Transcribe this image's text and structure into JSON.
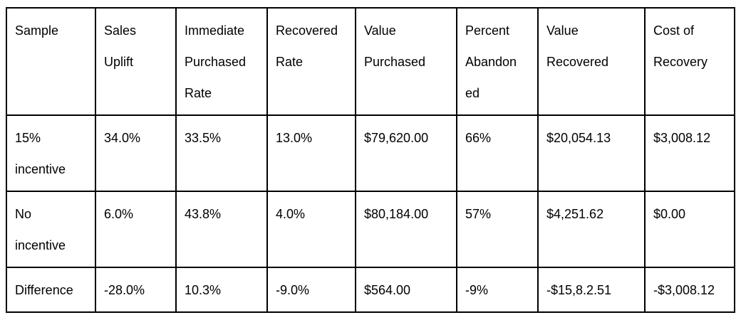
{
  "page": {
    "background_color": "#ffffff",
    "text_color": "#000000",
    "border_color": "#000000"
  },
  "table": {
    "headers": [
      "Sample",
      "Sales\nUplift",
      "Immediate\nPurchased\nRate",
      "Recovered\nRate",
      "Value\nPurchased",
      "Percent\nAbandon\ned",
      "Value\nRecovered",
      "Cost of\nRecovery"
    ],
    "rows": [
      [
        "15%\nincentive",
        "34.0%",
        "33.5%",
        "13.0%",
        "$79,620.00",
        "66%",
        "$20,054.13",
        "$3,008.12"
      ],
      [
        "No\nincentive",
        "6.0%",
        "43.8%",
        "4.0%",
        "$80,184.00",
        "57%",
        "$4,251.62",
        "$0.00"
      ],
      [
        "Difference",
        "-28.0%",
        "10.3%",
        "-9.0%",
        "$564.00",
        "-9%",
        "-$15,8.2.51",
        "-$3,008.12"
      ]
    ]
  }
}
